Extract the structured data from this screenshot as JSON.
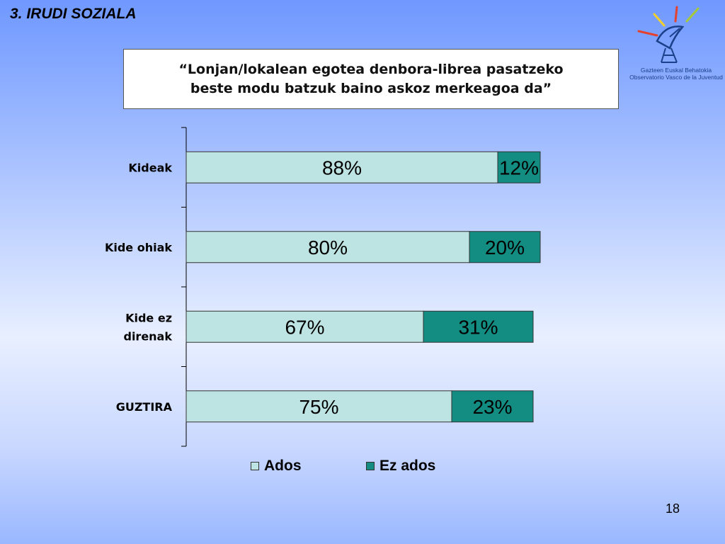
{
  "heading": "3. IRUDI SOZIALA",
  "logo": {
    "line1": "Gazteen Euskal Behatokia",
    "line2": "Observatorio Vasco de la Juventud"
  },
  "page_number": "18",
  "colors": {
    "ados": "#bde3e3",
    "ez_ados": "#138c82",
    "border": "#333333"
  },
  "chart_data": {
    "type": "bar",
    "orientation": "horizontal",
    "stacked": true,
    "title_line1": "“Lonjan/lokalean egotea denbora-librea pasatzeko",
    "title_line2": "beste modu batzuk baino askoz merkeagoa da”",
    "categories": [
      "Kideak",
      "Kide ohiak",
      "Kide ez direnak",
      "GUZTIRA"
    ],
    "category_lines": [
      [
        "Kideak"
      ],
      [
        "Kide ohiak"
      ],
      [
        "Kide ez",
        "direnak"
      ],
      [
        "GUZTIRA"
      ]
    ],
    "series": [
      {
        "name": "Ados",
        "values": [
          88,
          80,
          67,
          75
        ],
        "labels": [
          "88%",
          "80%",
          "67%",
          "75%"
        ]
      },
      {
        "name": "Ez ados",
        "values": [
          12,
          20,
          31,
          23
        ],
        "labels": [
          "12%",
          "20%",
          "31%",
          "23%"
        ]
      }
    ],
    "xlim": [
      0,
      100
    ],
    "legend_position": "bottom",
    "grid": false
  }
}
